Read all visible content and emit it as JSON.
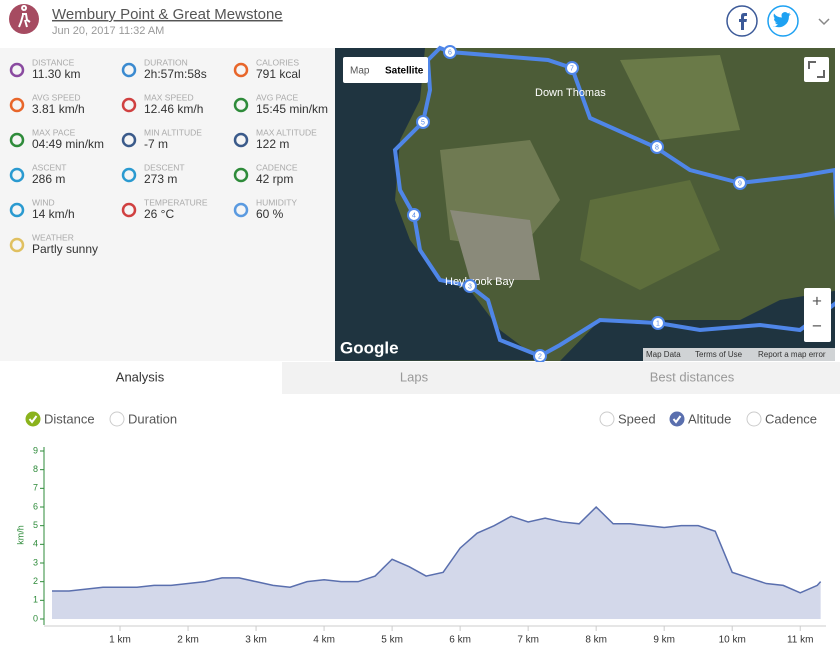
{
  "header": {
    "title": "Wembury Point & Great Mewstone",
    "date": "Jun 20, 2017 11:32 AM"
  },
  "stats": [
    {
      "label": "DISTANCE",
      "value": "11.30 km"
    },
    {
      "label": "DURATION",
      "value": "2h:57m:58s"
    },
    {
      "label": "CALORIES",
      "value": "791 kcal"
    },
    {
      "label": "AVG SPEED",
      "value": "3.81 km/h"
    },
    {
      "label": "MAX SPEED",
      "value": "12.46 km/h"
    },
    {
      "label": "AVG PACE",
      "value": "15:45 min/km"
    },
    {
      "label": "MAX PACE",
      "value": "04:49 min/km"
    },
    {
      "label": "MIN ALTITUDE",
      "value": "-7 m"
    },
    {
      "label": "MAX ALTITUDE",
      "value": "122 m"
    },
    {
      "label": "ASCENT",
      "value": "286 m"
    },
    {
      "label": "DESCENT",
      "value": "273 m"
    },
    {
      "label": "CADENCE",
      "value": "42 rpm"
    },
    {
      "label": "WIND",
      "value": "14 km/h"
    },
    {
      "label": "TEMPERATURE",
      "value": "26 °C"
    },
    {
      "label": "HUMIDITY",
      "value": "60 %"
    },
    {
      "label": "WEATHER",
      "value": "Partly sunny"
    }
  ],
  "map": {
    "buttons": [
      "Map",
      "Satellite"
    ],
    "places": [
      "Down Thomas",
      "Heybrook Bay"
    ],
    "waypoints": [
      "1",
      "2",
      "3",
      "4",
      "5",
      "6",
      "7",
      "8",
      "9"
    ],
    "brand": "Google",
    "footer": [
      "Map Data",
      "Terms of Use",
      "Report a map error"
    ],
    "zoom": [
      "+",
      "−"
    ]
  },
  "tabs": [
    "Analysis",
    "Laps",
    "Best distances"
  ],
  "controls": {
    "xmode": [
      "Distance",
      "Duration"
    ],
    "metrics": [
      "Speed",
      "Altitude",
      "Cadence"
    ]
  },
  "chart_data": {
    "type": "area",
    "y_label": "km/h",
    "x": [
      0,
      0.25,
      0.5,
      0.75,
      1,
      1.25,
      1.5,
      1.75,
      2,
      2.25,
      2.5,
      2.75,
      3,
      3.25,
      3.5,
      3.75,
      4,
      4.25,
      4.5,
      4.75,
      5,
      5.25,
      5.5,
      5.75,
      6,
      6.25,
      6.5,
      6.75,
      7,
      7.25,
      7.5,
      7.75,
      8,
      8.25,
      8.5,
      8.75,
      9,
      9.25,
      9.5,
      9.75,
      10,
      10.25,
      10.5,
      10.75,
      11,
      11.25,
      11.3
    ],
    "series": [
      {
        "color": "#5a6fae",
        "values": [
          1.5,
          1.5,
          1.6,
          1.7,
          1.7,
          1.7,
          1.8,
          1.8,
          1.9,
          2.0,
          2.2,
          2.2,
          2.0,
          1.8,
          1.7,
          2.0,
          2.1,
          2.0,
          2.0,
          2.3,
          3.2,
          2.8,
          2.3,
          2.5,
          3.8,
          4.6,
          5.0,
          5.5,
          5.2,
          5.4,
          5.2,
          5.1,
          6.0,
          5.1,
          5.1,
          5.0,
          4.9,
          5.0,
          5.0,
          4.7,
          2.5,
          2.2,
          1.9,
          1.8,
          1.4,
          1.8,
          2.0
        ]
      }
    ],
    "xlim": [
      0,
      11.32
    ],
    "ylim": [
      0,
      9
    ],
    "xticks": [
      {
        "value": 1,
        "label": "1 km"
      },
      {
        "value": 2,
        "label": "2 km"
      },
      {
        "value": 3,
        "label": "3 km"
      },
      {
        "value": 4,
        "label": "4 km"
      },
      {
        "value": 5,
        "label": "5 km"
      },
      {
        "value": 6,
        "label": "6 km"
      },
      {
        "value": 7,
        "label": "7 km"
      },
      {
        "value": 8,
        "label": "8 km"
      },
      {
        "value": 9,
        "label": "9 km"
      },
      {
        "value": 10,
        "label": "10 km"
      },
      {
        "value": 11,
        "label": "11 km"
      }
    ],
    "yticks": [
      0,
      1,
      2,
      3,
      4,
      5,
      6,
      7,
      8,
      9
    ],
    "fill": "#d3d8ea",
    "axis_color": "#2e8b3a"
  }
}
